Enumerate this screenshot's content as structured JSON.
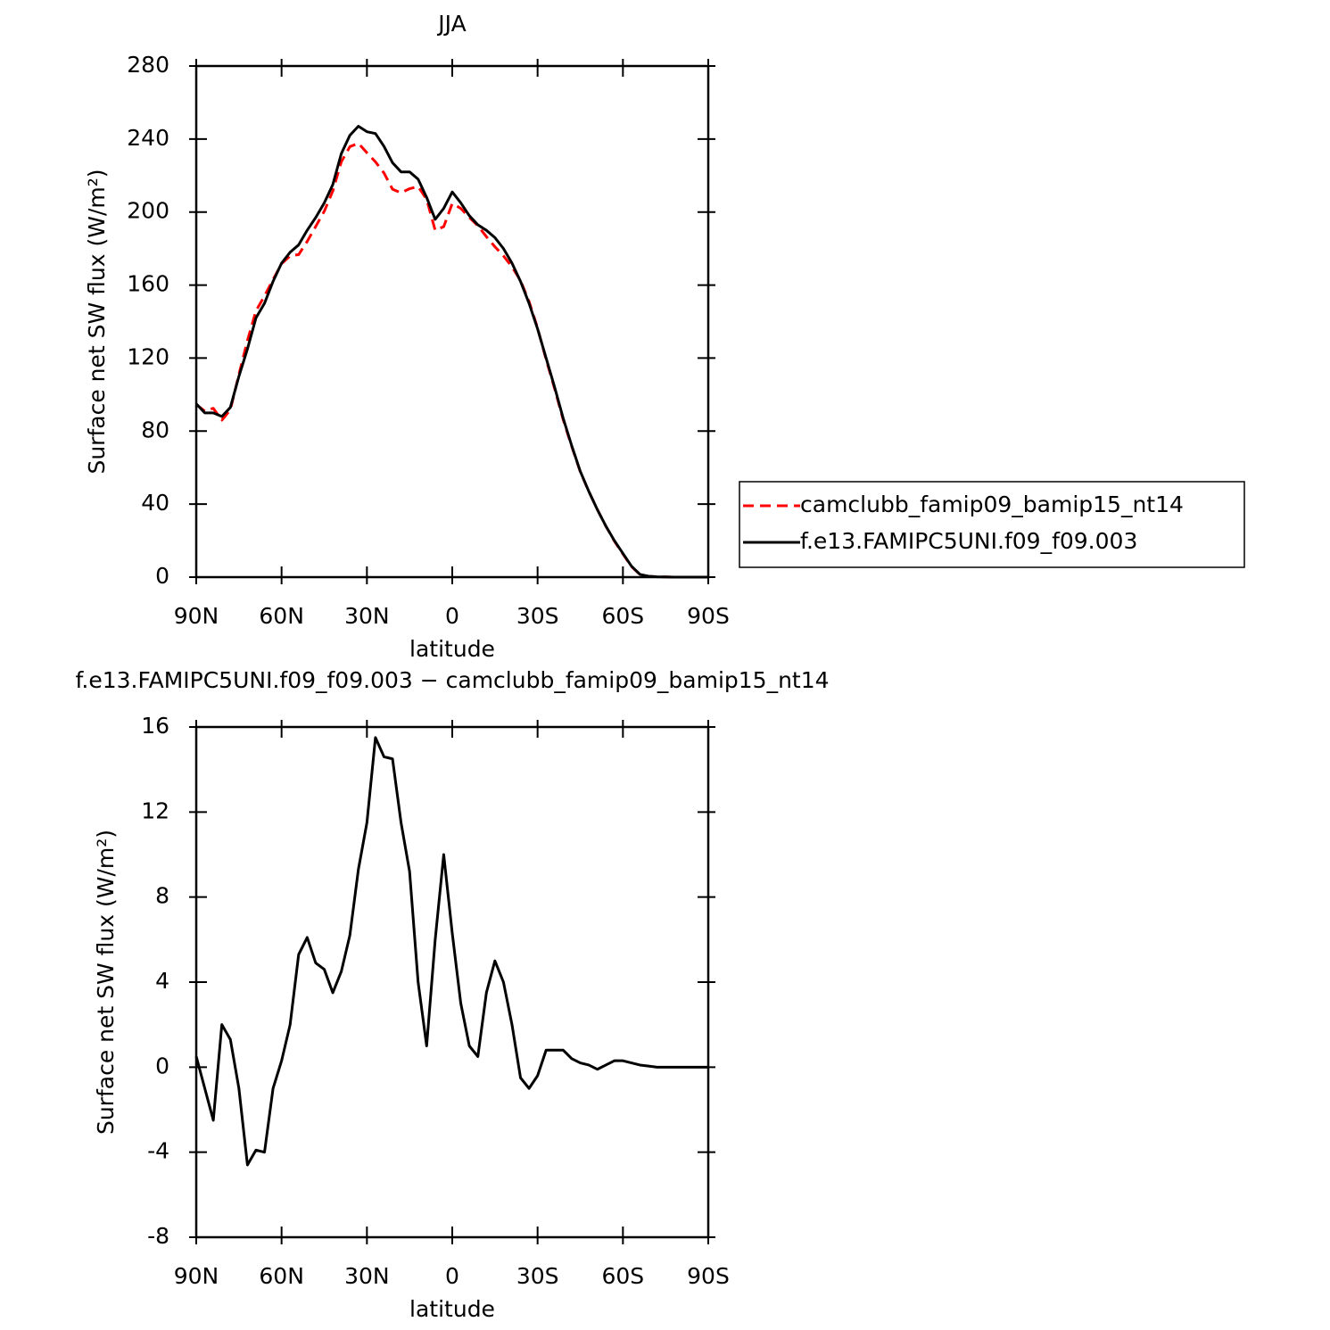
{
  "chart_data": [
    {
      "type": "line",
      "title": "JJA",
      "xlabel": "latitude",
      "ylabel": "Surface net SW flux (W/m²)",
      "x": [
        90,
        87,
        84,
        81,
        78,
        75,
        72,
        69,
        66,
        63,
        60,
        57,
        54,
        51,
        48,
        45,
        42,
        39,
        36,
        33,
        30,
        27,
        24,
        21,
        18,
        15,
        12,
        9,
        6,
        3,
        0,
        -3,
        -6,
        -9,
        -12,
        -15,
        -18,
        -21,
        -24,
        -27,
        -30,
        -33,
        -36,
        -39,
        -42,
        -45,
        -48,
        -51,
        -54,
        -57,
        -60,
        -63,
        -66,
        -69,
        -72,
        -75,
        -78,
        -81,
        -84,
        -87,
        -90
      ],
      "series": [
        {
          "name": "camclubb_famip09_bamip15_nt14",
          "color": "#ff0000",
          "dash": "dashed",
          "values": [
            94.5,
            91,
            92.5,
            86,
            91.7,
            111,
            129.6,
            145.9,
            154,
            163,
            171.7,
            176,
            176.7,
            183.9,
            192.1,
            200.4,
            211.5,
            227.5,
            235.8,
            237.7,
            232.5,
            227.5,
            221.4,
            212.5,
            210.5,
            212.8,
            214,
            207,
            190,
            192,
            204.7,
            202,
            197,
            192.5,
            186.5,
            181,
            176,
            170,
            162.5,
            151,
            136.4,
            119.2,
            103.2,
            86.2,
            71.6,
            57.8,
            46.9,
            37.1,
            27.9,
            19.7,
            12.7,
            5.8,
            1.4,
            0.45,
            0.2,
            0.1,
            0,
            0,
            0,
            0,
            0
          ]
        },
        {
          "name": "f.e13.FAMIPC5UNI.f09_f09.003",
          "color": "#000000",
          "dash": "solid",
          "values": [
            95,
            90,
            90,
            88,
            93,
            110,
            125,
            142,
            150,
            162,
            172,
            178,
            182,
            190,
            197,
            205,
            215,
            232,
            242,
            247,
            244,
            243,
            236,
            227,
            222,
            222,
            218,
            208,
            196,
            202,
            211,
            205,
            198,
            193,
            190,
            186,
            180,
            172,
            162,
            150,
            136,
            120,
            104,
            87,
            72,
            58,
            47,
            37,
            28,
            20,
            13,
            6,
            1.5,
            0.5,
            0.2,
            0.1,
            0,
            0,
            0,
            0,
            0
          ]
        }
      ],
      "xlim": [
        90,
        -90
      ],
      "xticks": [
        {
          "value": 90,
          "label": "90N"
        },
        {
          "value": 60,
          "label": "60N"
        },
        {
          "value": 30,
          "label": "30N"
        },
        0,
        {
          "value": -30,
          "label": "30S"
        },
        {
          "value": -60,
          "label": "60S"
        },
        {
          "value": -90,
          "label": "90S"
        }
      ],
      "ylim": [
        0,
        280
      ],
      "yticks": [
        0,
        40,
        80,
        120,
        160,
        200,
        240,
        280
      ],
      "legend": "right"
    },
    {
      "type": "line",
      "title": "f.e13.FAMIPC5UNI.f09_f09.003 − camclubb_famip09_bamip15_nt14",
      "xlabel": "latitude",
      "ylabel": "Surface net SW flux (W/m²)",
      "x": [
        90,
        87,
        84,
        81,
        78,
        75,
        72,
        69,
        66,
        63,
        60,
        57,
        54,
        51,
        48,
        45,
        42,
        39,
        36,
        33,
        30,
        27,
        24,
        21,
        18,
        15,
        12,
        9,
        6,
        3,
        0,
        -3,
        -6,
        -9,
        -12,
        -15,
        -18,
        -21,
        -24,
        -27,
        -30,
        -33,
        -36,
        -39,
        -42,
        -45,
        -48,
        -51,
        -54,
        -57,
        -60,
        -63,
        -66,
        -69,
        -72,
        -75,
        -78,
        -81,
        -84,
        -87,
        -90
      ],
      "series": [
        {
          "color": "#000000",
          "dash": "solid",
          "values": [
            0.5,
            -1,
            -2.5,
            2,
            1.3,
            -1,
            -4.6,
            -3.9,
            -4,
            -1,
            0.3,
            2,
            5.3,
            6.1,
            4.9,
            4.6,
            3.5,
            4.5,
            6.2,
            9.3,
            11.5,
            15.5,
            14.6,
            14.5,
            11.5,
            9.2,
            4,
            1,
            6,
            10,
            6.3,
            3,
            1,
            0.5,
            3.5,
            5,
            4,
            2,
            -0.5,
            -1,
            -0.4,
            0.8,
            0.8,
            0.8,
            0.4,
            0.2,
            0.1,
            -0.1,
            0.1,
            0.3,
            0.3,
            0.2,
            0.1,
            0.05,
            0,
            0,
            0,
            0,
            0,
            0,
            0
          ]
        }
      ],
      "xlim": [
        90,
        -90
      ],
      "xticks": [
        {
          "value": 90,
          "label": "90N"
        },
        {
          "value": 60,
          "label": "60N"
        },
        {
          "value": 30,
          "label": "30N"
        },
        0,
        {
          "value": -30,
          "label": "30S"
        },
        {
          "value": -60,
          "label": "60S"
        },
        {
          "value": -90,
          "label": "90S"
        }
      ],
      "ylim": [
        -8,
        16
      ],
      "yticks": [
        -8,
        -4,
        0,
        4,
        8,
        12,
        16
      ]
    }
  ]
}
